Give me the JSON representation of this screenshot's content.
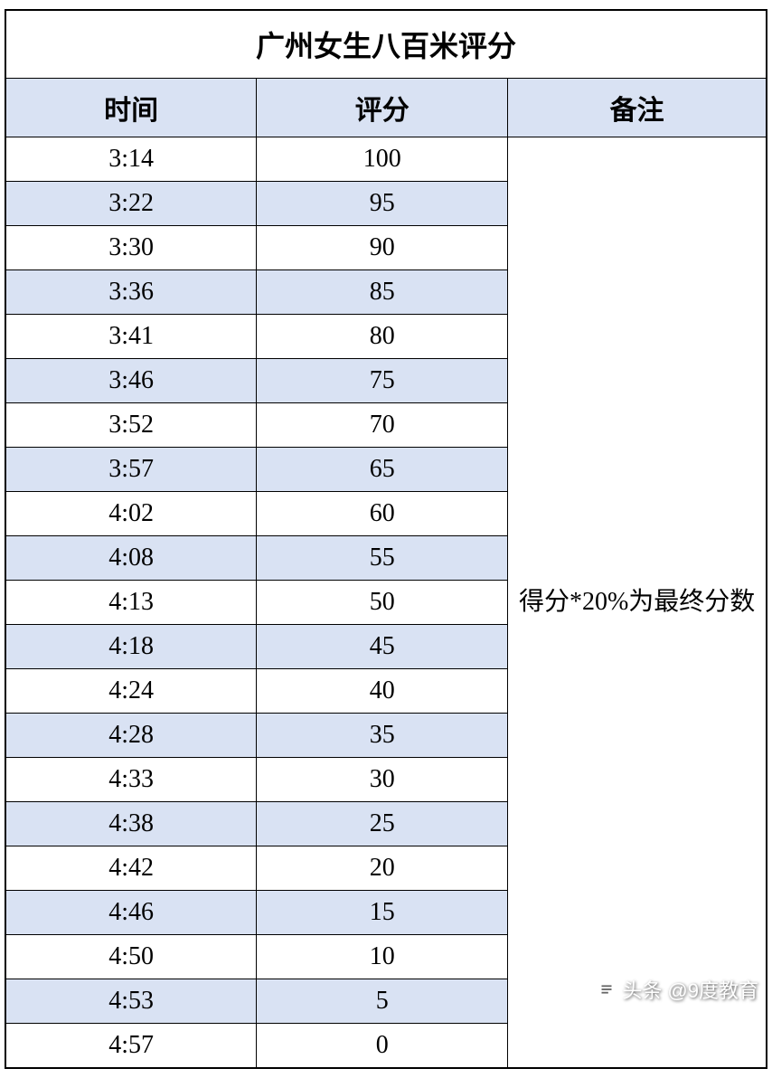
{
  "table": {
    "title": "广州女生八百米评分",
    "columns": [
      "时间",
      "评分",
      "备注"
    ],
    "rows": [
      {
        "time": "3:14",
        "score": "100"
      },
      {
        "time": "3:22",
        "score": "95"
      },
      {
        "time": "3:30",
        "score": "90"
      },
      {
        "time": "3:36",
        "score": "85"
      },
      {
        "time": "3:41",
        "score": "80"
      },
      {
        "time": "3:46",
        "score": "75"
      },
      {
        "time": "3:52",
        "score": "70"
      },
      {
        "time": "3:57",
        "score": "65"
      },
      {
        "time": "4:02",
        "score": "60"
      },
      {
        "time": "4:08",
        "score": "55"
      },
      {
        "time": "4:13",
        "score": "50"
      },
      {
        "time": "4:18",
        "score": "45"
      },
      {
        "time": "4:24",
        "score": "40"
      },
      {
        "time": "4:28",
        "score": "35"
      },
      {
        "time": "4:33",
        "score": "30"
      },
      {
        "time": "4:38",
        "score": "25"
      },
      {
        "time": "4:42",
        "score": "20"
      },
      {
        "time": "4:46",
        "score": "15"
      },
      {
        "time": "4:50",
        "score": "10"
      },
      {
        "time": "4:53",
        "score": "5"
      },
      {
        "time": "4:57",
        "score": "0"
      }
    ],
    "note": "得分*20%为最终分数",
    "colors": {
      "header_bg": "#d9e2f3",
      "row_alt_bg": "#d9e2f3",
      "row_bg": "#ffffff",
      "border": "#000000",
      "text": "#000000"
    },
    "typography": {
      "title_fontsize": 32,
      "header_fontsize": 30,
      "cell_fontsize": 28,
      "title_weight": "bold",
      "header_weight": "bold"
    }
  },
  "watermark": {
    "text": "头条 @9度教育"
  }
}
